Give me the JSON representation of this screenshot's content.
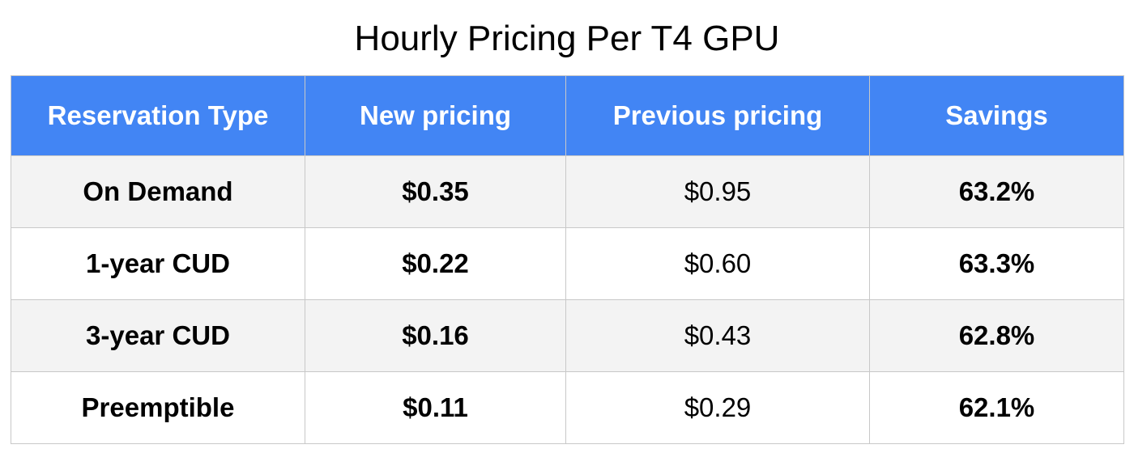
{
  "title": "Hourly Pricing Per T4 GPU",
  "table": {
    "headers": [
      "Reservation Type",
      "New pricing",
      "Previous pricing",
      "Savings"
    ],
    "rows": [
      [
        "On Demand",
        "$0.35",
        "$0.95",
        "63.2%"
      ],
      [
        "1-year CUD",
        "$0.22",
        "$0.60",
        "63.3%"
      ],
      [
        "3-year CUD",
        "$0.16",
        "$0.43",
        "62.8%"
      ],
      [
        "Preemptible",
        "$0.11",
        "$0.29",
        "62.1%"
      ]
    ]
  },
  "colors": {
    "header_background": "#4285f4",
    "header_text": "#ffffff",
    "striped_row_background": "#f3f3f3"
  }
}
